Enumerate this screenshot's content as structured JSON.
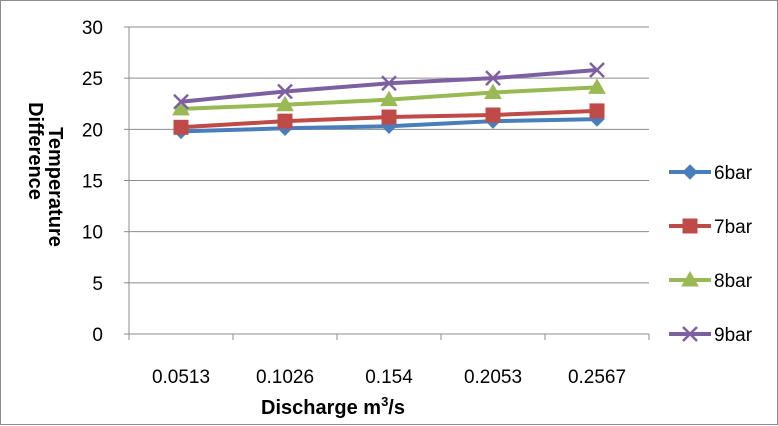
{
  "chart_data": {
    "type": "line",
    "title": "",
    "xlabel": "Discharge m",
    "xlabel_sup": "3",
    "xlabel_suffix": "/s",
    "ylabel_line1": "Temperature",
    "ylabel_line2": "Difference",
    "categories": [
      "0.0513",
      "0.1026",
      "0.154",
      "0.2053",
      "0.2567"
    ],
    "ylim": [
      0,
      30
    ],
    "yticks": [
      "0",
      "5",
      "10",
      "15",
      "20",
      "25",
      "30"
    ],
    "grid": true,
    "legend_position": "right",
    "series": [
      {
        "name": "6bar",
        "color": "#4a7ebb",
        "marker": "diamond",
        "values": [
          19.8,
          20.1,
          20.3,
          20.8,
          21.0
        ]
      },
      {
        "name": "7bar",
        "color": "#be4b48",
        "marker": "square",
        "values": [
          20.2,
          20.8,
          21.2,
          21.4,
          21.8
        ]
      },
      {
        "name": "8bar",
        "color": "#98b954",
        "marker": "triangle",
        "values": [
          22.0,
          22.4,
          22.9,
          23.6,
          24.1
        ]
      },
      {
        "name": "9bar",
        "color": "#7d60a0",
        "marker": "x",
        "values": [
          22.7,
          23.7,
          24.5,
          25.0,
          25.8
        ]
      }
    ]
  }
}
